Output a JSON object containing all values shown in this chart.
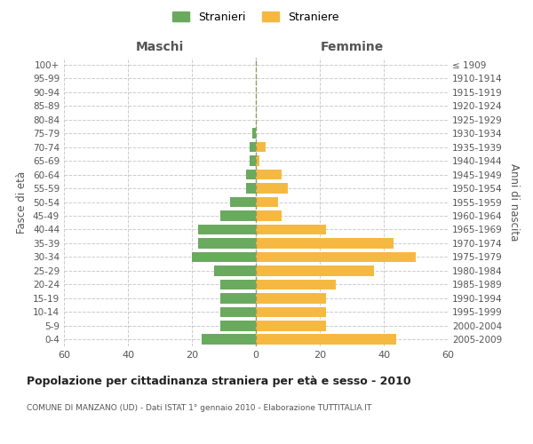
{
  "age_groups": [
    "100+",
    "95-99",
    "90-94",
    "85-89",
    "80-84",
    "75-79",
    "70-74",
    "65-69",
    "60-64",
    "55-59",
    "50-54",
    "45-49",
    "40-44",
    "35-39",
    "30-34",
    "25-29",
    "20-24",
    "15-19",
    "10-14",
    "5-9",
    "0-4"
  ],
  "birth_years": [
    "≤ 1909",
    "1910-1914",
    "1915-1919",
    "1920-1924",
    "1925-1929",
    "1930-1934",
    "1935-1939",
    "1940-1944",
    "1945-1949",
    "1950-1954",
    "1955-1959",
    "1960-1964",
    "1965-1969",
    "1970-1974",
    "1975-1979",
    "1980-1984",
    "1985-1989",
    "1990-1994",
    "1995-1999",
    "2000-2004",
    "2005-2009"
  ],
  "maschi": [
    0,
    0,
    0,
    0,
    0,
    1,
    2,
    2,
    3,
    3,
    8,
    11,
    18,
    18,
    20,
    13,
    11,
    11,
    11,
    11,
    17
  ],
  "femmine": [
    0,
    0,
    0,
    0,
    0,
    0,
    3,
    1,
    8,
    10,
    7,
    8,
    22,
    43,
    50,
    37,
    25,
    22,
    22,
    22,
    44
  ],
  "maschi_color": "#6aaa5e",
  "femmine_color": "#f5b942",
  "background_color": "#ffffff",
  "grid_color": "#cccccc",
  "title": "Popolazione per cittadinanza straniera per età e sesso - 2010",
  "subtitle": "COMUNE DI MANZANO (UD) - Dati ISTAT 1° gennaio 2010 - Elaborazione TUTTITALIA.IT",
  "xlabel_left": "Maschi",
  "xlabel_right": "Femmine",
  "ylabel_left": "Fasce di età",
  "ylabel_right": "Anni di nascita",
  "legend_maschi": "Stranieri",
  "legend_femmine": "Straniere",
  "xlim": 60,
  "bar_height": 0.75
}
